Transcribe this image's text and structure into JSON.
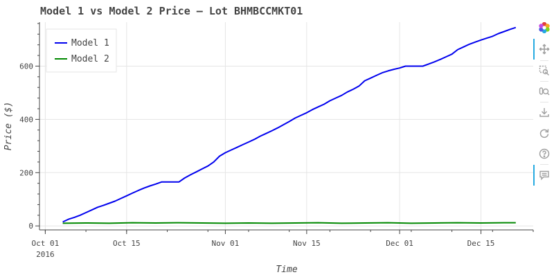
{
  "chart_data": {
    "type": "line",
    "title": "Model 1 vs Model 2 Price – Lot BHMBCCMKT01",
    "xlabel": "Time",
    "ylabel": "Price ($)",
    "x_start": "2016-09-30",
    "x_end": "2016-12-24",
    "ylim": [
      -15,
      765
    ],
    "y_ticks": [
      0,
      200,
      400,
      600
    ],
    "x_ticks": [
      {
        "date": "2016-10-01",
        "label": "Oct 01",
        "sublabel": "2016"
      },
      {
        "date": "2016-10-15",
        "label": "Oct 15",
        "sublabel": ""
      },
      {
        "date": "2016-11-01",
        "label": "Nov 01",
        "sublabel": ""
      },
      {
        "date": "2016-11-15",
        "label": "Nov 15",
        "sublabel": ""
      },
      {
        "date": "2016-12-01",
        "label": "Dec 01",
        "sublabel": ""
      },
      {
        "date": "2016-12-15",
        "label": "Dec 15",
        "sublabel": ""
      }
    ],
    "grid": true,
    "legend_position": "top-left",
    "series": [
      {
        "name": "Model 1",
        "color": "#0000ee",
        "points": [
          [
            "2016-10-04",
            15
          ],
          [
            "2016-10-05",
            25
          ],
          [
            "2016-10-06",
            32
          ],
          [
            "2016-10-07",
            40
          ],
          [
            "2016-10-08",
            50
          ],
          [
            "2016-10-09",
            60
          ],
          [
            "2016-10-10",
            70
          ],
          [
            "2016-10-11",
            77
          ],
          [
            "2016-10-12",
            85
          ],
          [
            "2016-10-13",
            93
          ],
          [
            "2016-10-14",
            103
          ],
          [
            "2016-10-15",
            113
          ],
          [
            "2016-10-16",
            123
          ],
          [
            "2016-10-17",
            133
          ],
          [
            "2016-10-18",
            142
          ],
          [
            "2016-10-19",
            150
          ],
          [
            "2016-10-20",
            157
          ],
          [
            "2016-10-21",
            165
          ],
          [
            "2016-10-24",
            165
          ],
          [
            "2016-10-25",
            180
          ],
          [
            "2016-10-26",
            192
          ],
          [
            "2016-10-27",
            203
          ],
          [
            "2016-10-28",
            214
          ],
          [
            "2016-10-29",
            225
          ],
          [
            "2016-10-30",
            240
          ],
          [
            "2016-10-31",
            262
          ],
          [
            "2016-11-01",
            275
          ],
          [
            "2016-11-02",
            285
          ],
          [
            "2016-11-03",
            295
          ],
          [
            "2016-11-04",
            305
          ],
          [
            "2016-11-05",
            315
          ],
          [
            "2016-11-06",
            325
          ],
          [
            "2016-11-07",
            337
          ],
          [
            "2016-11-08",
            347
          ],
          [
            "2016-11-09",
            357
          ],
          [
            "2016-11-10",
            368
          ],
          [
            "2016-11-11",
            380
          ],
          [
            "2016-11-12",
            392
          ],
          [
            "2016-11-13",
            405
          ],
          [
            "2016-11-14",
            415
          ],
          [
            "2016-11-15",
            425
          ],
          [
            "2016-11-16",
            437
          ],
          [
            "2016-11-17",
            447
          ],
          [
            "2016-11-18",
            457
          ],
          [
            "2016-11-19",
            470
          ],
          [
            "2016-11-20",
            480
          ],
          [
            "2016-11-21",
            490
          ],
          [
            "2016-11-22",
            503
          ],
          [
            "2016-11-23",
            513
          ],
          [
            "2016-11-24",
            525
          ],
          [
            "2016-11-25",
            545
          ],
          [
            "2016-11-26",
            555
          ],
          [
            "2016-11-27",
            565
          ],
          [
            "2016-11-28",
            575
          ],
          [
            "2016-11-29",
            582
          ],
          [
            "2016-11-30",
            588
          ],
          [
            "2016-12-01",
            593
          ],
          [
            "2016-12-02",
            600
          ],
          [
            "2016-12-05",
            600
          ],
          [
            "2016-12-06",
            608
          ],
          [
            "2016-12-07",
            616
          ],
          [
            "2016-12-08",
            625
          ],
          [
            "2016-12-09",
            635
          ],
          [
            "2016-12-10",
            645
          ],
          [
            "2016-12-11",
            662
          ],
          [
            "2016-12-12",
            672
          ],
          [
            "2016-12-13",
            682
          ],
          [
            "2016-12-14",
            690
          ],
          [
            "2016-12-15",
            698
          ],
          [
            "2016-12-16",
            705
          ],
          [
            "2016-12-17",
            712
          ],
          [
            "2016-12-18",
            722
          ],
          [
            "2016-12-19",
            730
          ],
          [
            "2016-12-20",
            738
          ],
          [
            "2016-12-21",
            745
          ]
        ]
      },
      {
        "name": "Model 2",
        "color": "#008800",
        "points": [
          [
            "2016-10-04",
            10
          ],
          [
            "2016-10-08",
            11
          ],
          [
            "2016-10-12",
            10
          ],
          [
            "2016-10-16",
            12
          ],
          [
            "2016-10-20",
            11
          ],
          [
            "2016-10-24",
            12
          ],
          [
            "2016-10-28",
            11
          ],
          [
            "2016-11-01",
            10
          ],
          [
            "2016-11-05",
            11
          ],
          [
            "2016-11-09",
            10
          ],
          [
            "2016-11-13",
            11
          ],
          [
            "2016-11-17",
            12
          ],
          [
            "2016-11-21",
            10
          ],
          [
            "2016-11-25",
            11
          ],
          [
            "2016-11-29",
            12
          ],
          [
            "2016-12-03",
            10
          ],
          [
            "2016-12-07",
            11
          ],
          [
            "2016-12-11",
            12
          ],
          [
            "2016-12-15",
            11
          ],
          [
            "2016-12-19",
            12
          ],
          [
            "2016-12-21",
            12
          ]
        ]
      }
    ]
  },
  "toolbar": {
    "tools": [
      {
        "name": "bokeh-logo-icon",
        "active": false
      },
      {
        "name": "pan-icon",
        "active": true
      },
      {
        "name": "box-zoom-icon",
        "active": false
      },
      {
        "name": "wheel-zoom-icon",
        "active": false
      },
      {
        "name": "save-icon",
        "active": false
      },
      {
        "name": "reset-icon",
        "active": false
      },
      {
        "name": "help-icon",
        "active": false
      },
      {
        "name": "hover-icon",
        "active": true
      }
    ],
    "accent_color": "#26aae1"
  }
}
